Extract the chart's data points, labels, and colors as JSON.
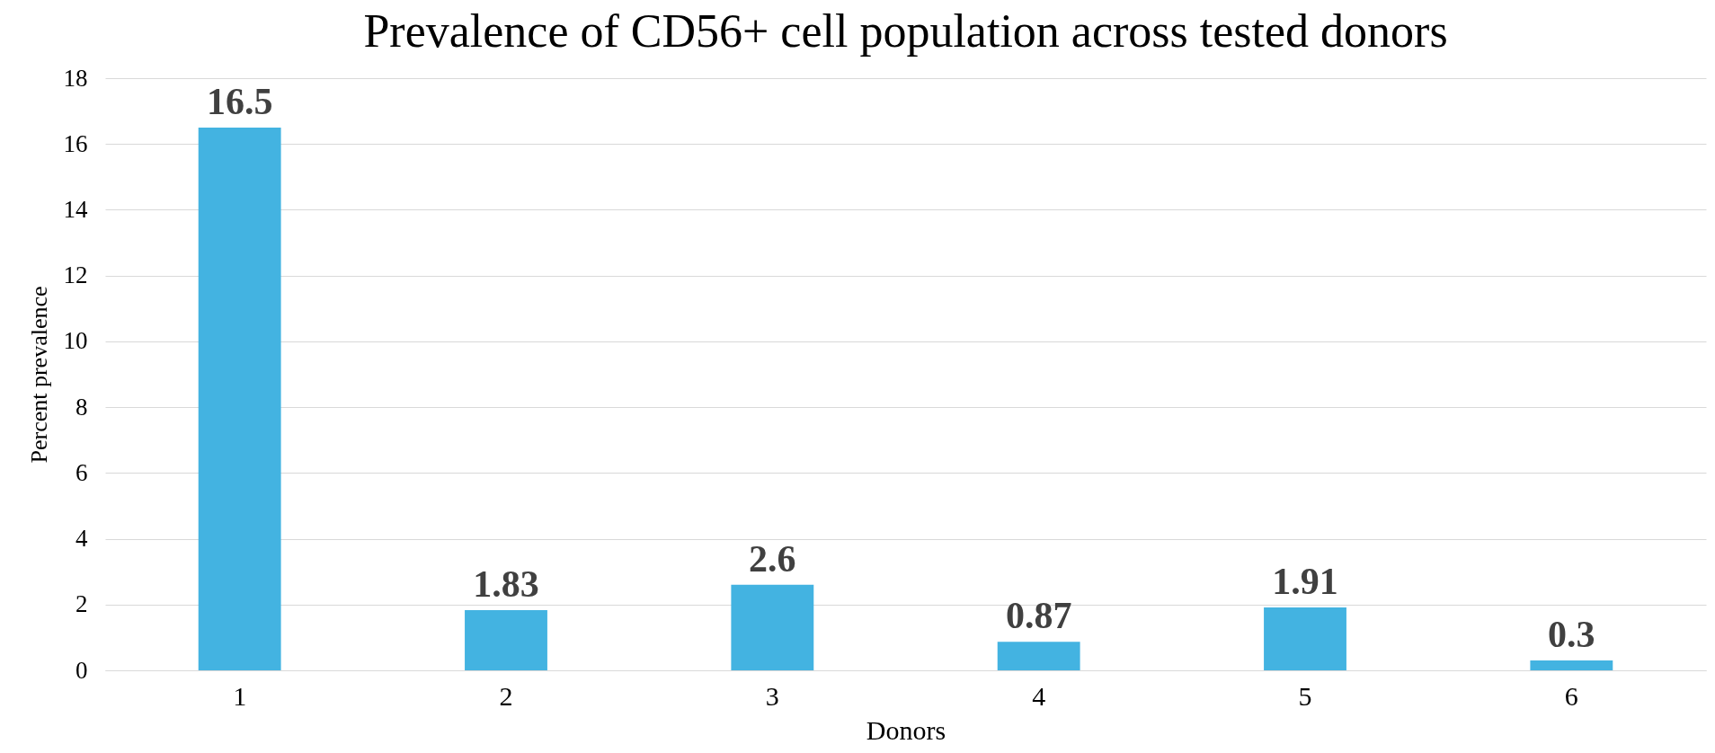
{
  "chart_data": {
    "type": "bar",
    "title": "Prevalence of CD56+ cell population across tested donors",
    "xlabel": "Donors",
    "ylabel": "Percent prevalence",
    "categories": [
      "1",
      "2",
      "3",
      "4",
      "5",
      "6"
    ],
    "values": [
      16.5,
      1.83,
      2.6,
      0.87,
      1.91,
      0.3
    ],
    "color": "#43b3e1",
    "ylim": [
      0,
      18
    ],
    "yticks": [
      0,
      2,
      4,
      6,
      8,
      10,
      12,
      14,
      16,
      18
    ],
    "grid": "y",
    "data_labels": true
  }
}
